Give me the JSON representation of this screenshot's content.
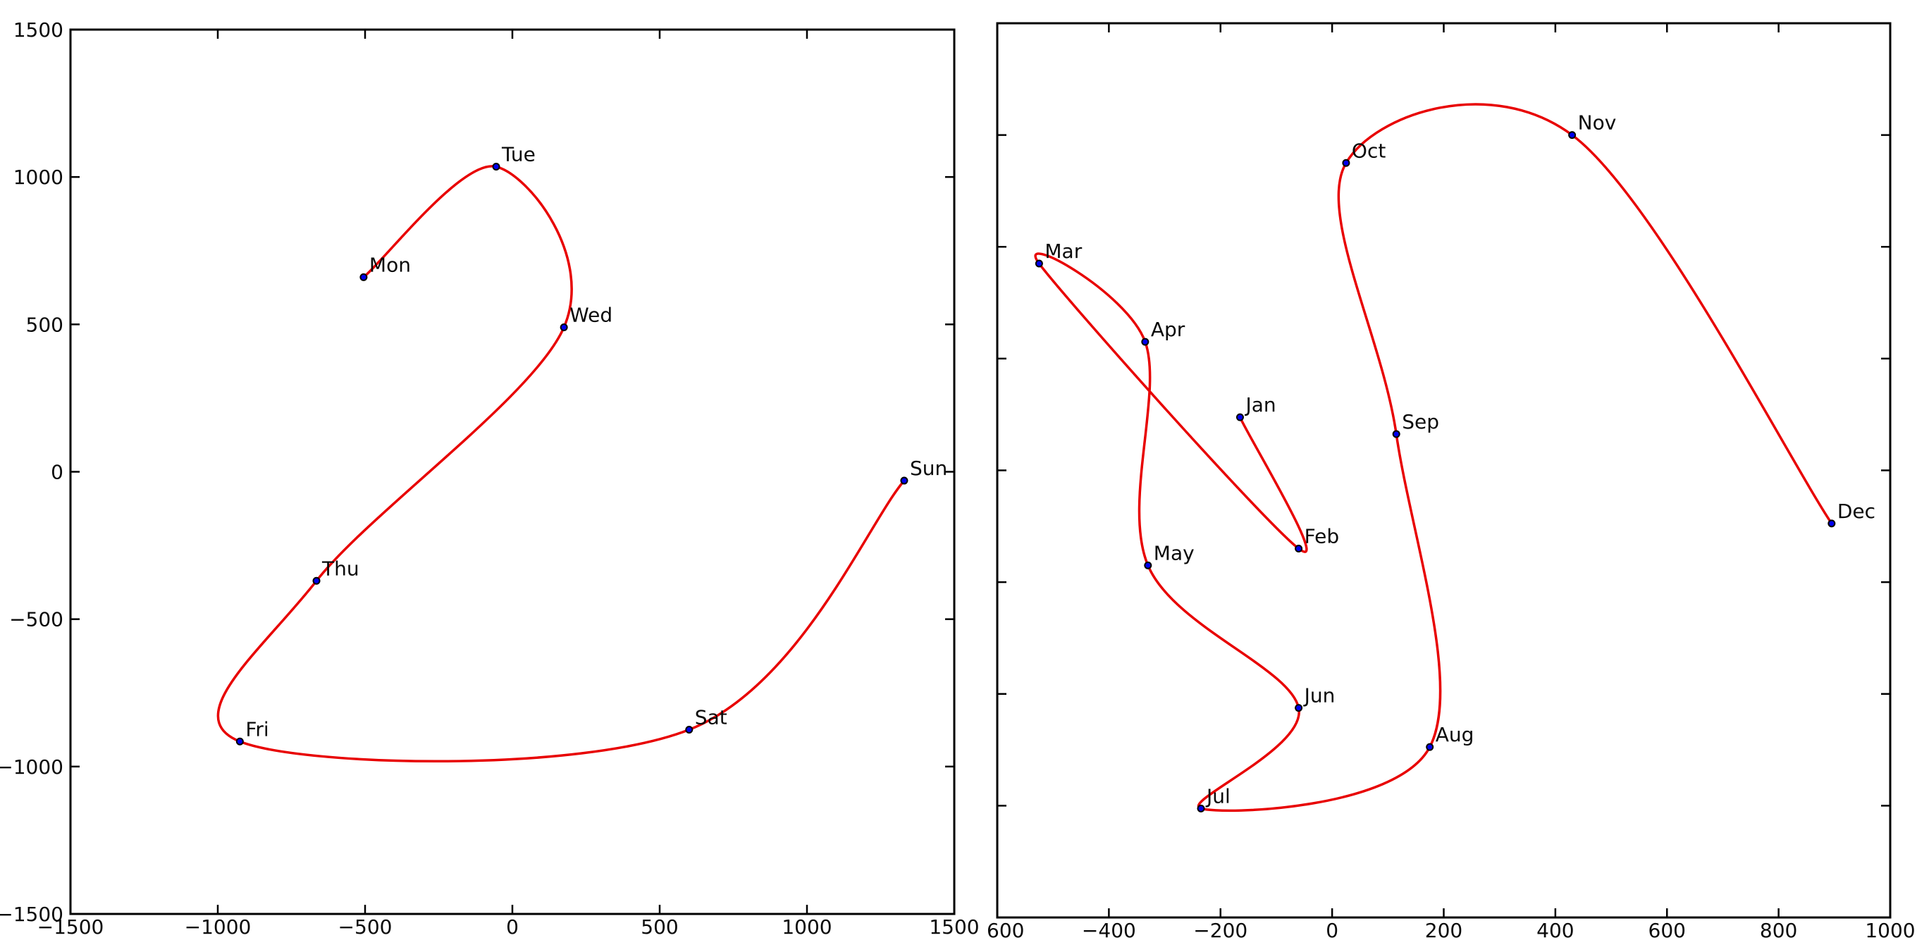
{
  "figure": {
    "background": "#ffffff",
    "frame_color": "#000000",
    "tick_color": "#000000",
    "text_color": "#0a0a0a",
    "curve_color": "#e80000",
    "marker_fill": "#0000ee",
    "marker_edge": "#000000"
  },
  "chart_data": [
    {
      "id": "weekday-trajectory",
      "type": "line",
      "title": "",
      "xlabel": "",
      "ylabel": "",
      "grid": false,
      "legend": null,
      "curve_style": "smooth parametric spline through labeled points",
      "xlim": [
        -1500,
        1500
      ],
      "ylim": [
        -1500,
        1500
      ],
      "xticks": [
        -1500,
        -1000,
        -500,
        0,
        500,
        1000,
        1500
      ],
      "xtick_labels": [
        "−1500",
        "−1000",
        "−500",
        "0",
        "500",
        "1000",
        "1500"
      ],
      "yticks": [
        -1500,
        -1000,
        -500,
        0,
        500,
        1000,
        1500
      ],
      "ytick_labels": [
        "−1500",
        "−1000",
        "−500",
        "0",
        "500",
        "1000",
        "1500"
      ],
      "points": [
        {
          "label": "Mon",
          "x": -505,
          "y": 660
        },
        {
          "label": "Tue",
          "x": -55,
          "y": 1035
        },
        {
          "label": "Wed",
          "x": 175,
          "y": 490
        },
        {
          "label": "Thu",
          "x": -665,
          "y": -370
        },
        {
          "label": "Fri",
          "x": -925,
          "y": -915
        },
        {
          "label": "Sat",
          "x": 600,
          "y": -875
        },
        {
          "label": "Sun",
          "x": 1330,
          "y": -30
        }
      ]
    },
    {
      "id": "month-trajectory",
      "type": "line",
      "title": "",
      "xlabel": "",
      "ylabel": "",
      "grid": false,
      "legend": null,
      "curve_style": "smooth parametric spline through labeled points",
      "note_left_edge": "panel is cropped at left: y tick labels not visible, −600 label partially clipped",
      "xlim": [
        -600,
        1000
      ],
      "ylim": [
        -800,
        800
      ],
      "xticks": [
        -600,
        -400,
        -200,
        0,
        200,
        400,
        600,
        800,
        1000
      ],
      "xtick_labels": [
        "−600",
        "−400",
        "−200",
        "0",
        "200",
        "400",
        "600",
        "800",
        "1000"
      ],
      "yticks": [
        -800,
        -600,
        -400,
        -200,
        0,
        200,
        400,
        600,
        800
      ],
      "ytick_labels": [],
      "points": [
        {
          "label": "Jan",
          "x": -165,
          "y": 95
        },
        {
          "label": "Feb",
          "x": -60,
          "y": -140
        },
        {
          "label": "Mar",
          "x": -525,
          "y": 370
        },
        {
          "label": "Apr",
          "x": -335,
          "y": 230
        },
        {
          "label": "May",
          "x": -330,
          "y": -170
        },
        {
          "label": "Jun",
          "x": -60,
          "y": -425
        },
        {
          "label": "Jul",
          "x": -235,
          "y": -605
        },
        {
          "label": "Aug",
          "x": 175,
          "y": -495
        },
        {
          "label": "Sep",
          "x": 115,
          "y": 65
        },
        {
          "label": "Oct",
          "x": 25,
          "y": 550
        },
        {
          "label": "Nov",
          "x": 430,
          "y": 600
        },
        {
          "label": "Dec",
          "x": 895,
          "y": -95
        }
      ]
    }
  ]
}
